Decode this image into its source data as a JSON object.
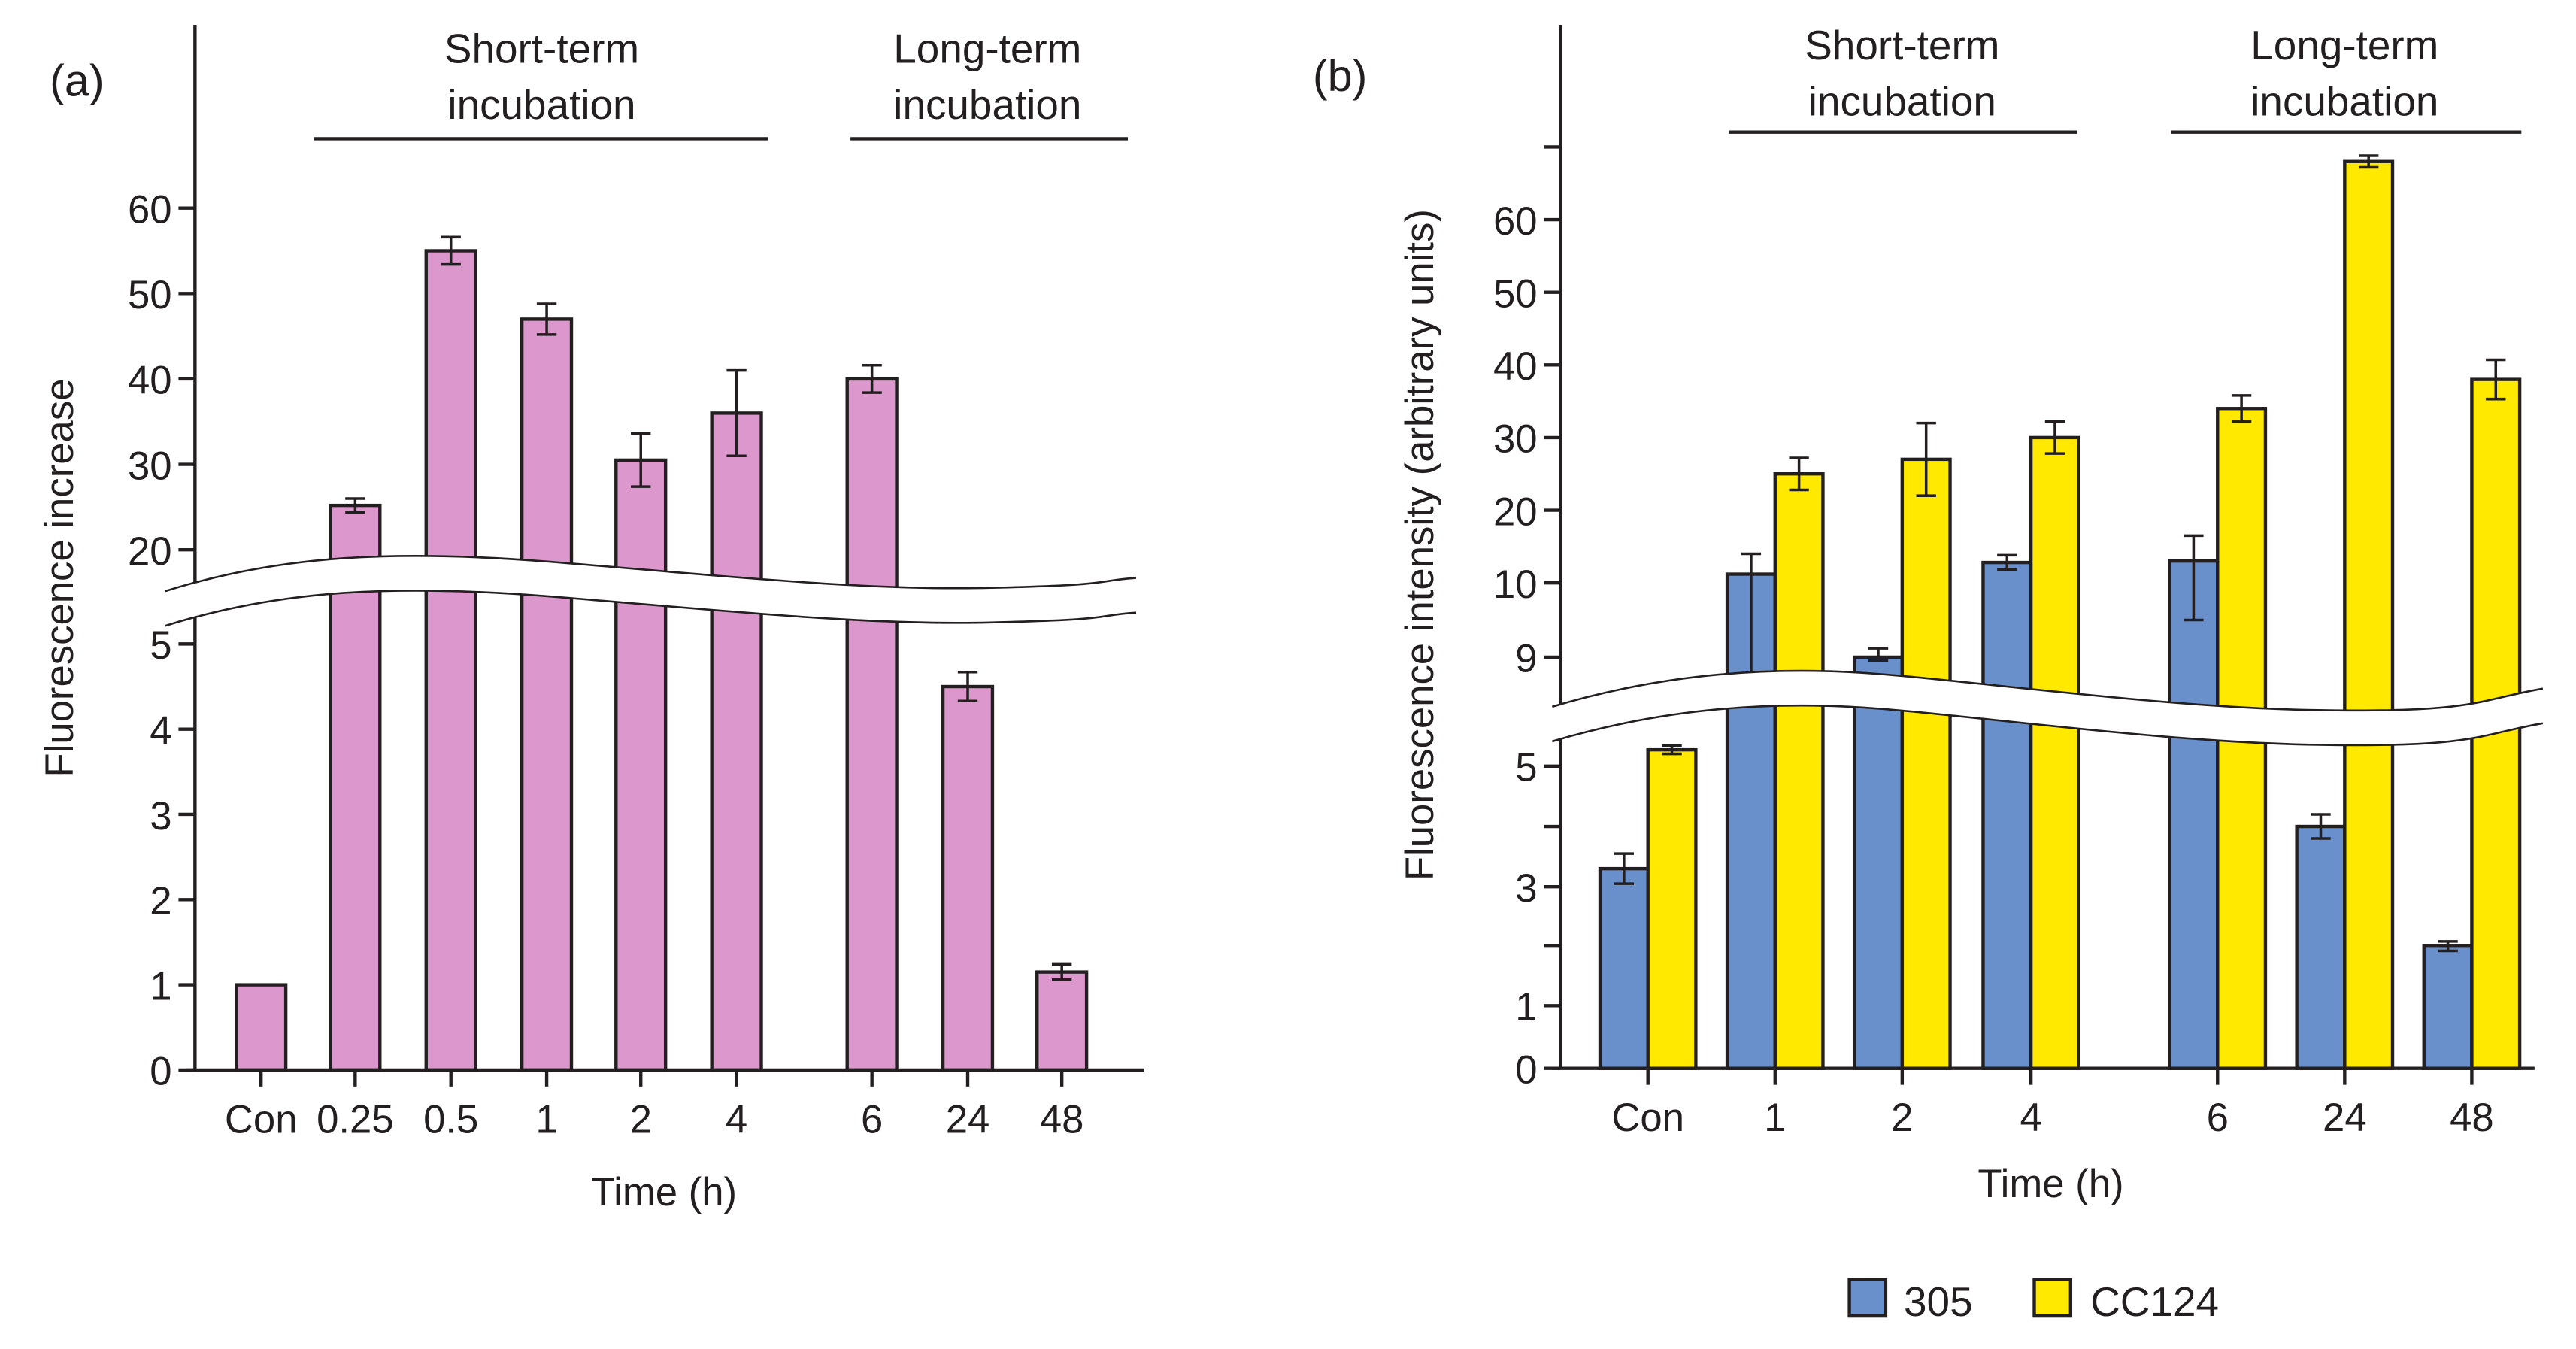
{
  "chart_data": [
    {
      "type": "bar",
      "panel_label": "(a)",
      "xlabel": "Time (h)",
      "ylabel": "Fluorescence increase",
      "y_axis_break": [
        5,
        20
      ],
      "yticks_lower": [
        "0",
        "1",
        "2",
        "3",
        "4",
        "5"
      ],
      "yticks_upper": [
        "20",
        "30",
        "40",
        "50",
        "60"
      ],
      "groups": [
        {
          "label_line1": "Short-term",
          "label_line2": "incubation",
          "from": "0.25",
          "to": "4"
        },
        {
          "label_line1": "Long-term",
          "label_line2": "incubation",
          "from": "6",
          "to": "48"
        }
      ],
      "categories": [
        "Con",
        "0.25",
        "0.5",
        "1",
        "2",
        "4",
        "6",
        "24",
        "48"
      ],
      "series": [
        {
          "name": "Fluorescence increase",
          "color": "#dc98cc",
          "values": [
            1,
            25.2,
            55,
            47,
            30.5,
            36,
            40,
            4.5,
            1.15
          ],
          "errors": [
            0,
            0.8,
            1.6,
            1.8,
            3.1,
            5,
            1.6,
            0.17,
            0.09
          ]
        }
      ]
    },
    {
      "type": "bar",
      "panel_label": "(b)",
      "xlabel": "Time (h)",
      "ylabel": "Fluorescence intensity (arbitrary units)",
      "y_axis_break": [
        5,
        9
      ],
      "yticks_lower": [
        "0",
        "1",
        "3",
        "5"
      ],
      "yticks_upper": [
        "9",
        "10",
        "20",
        "30",
        "40",
        "50",
        "60"
      ],
      "groups": [
        {
          "label_line1": "Short-term",
          "label_line2": "incubation",
          "from": "1",
          "to": "4"
        },
        {
          "label_line1": "Long-term",
          "label_line2": "incubation",
          "from": "6",
          "to": "48"
        }
      ],
      "categories": [
        "Con",
        "1",
        "2",
        "4",
        "6",
        "24",
        "48"
      ],
      "series": [
        {
          "name": "305",
          "color": "#6a90cc",
          "values": [
            3.3,
            11.2,
            9.0,
            12.8,
            13,
            4.0,
            2.0
          ],
          "errors": [
            0.25,
            2.8,
            0.12,
            1.0,
            3.5,
            0.2,
            0.08
          ]
        },
        {
          "name": "CC124",
          "color": "#ffe900",
          "values": [
            5.6,
            25,
            27,
            30,
            34,
            68,
            38
          ],
          "errors": [
            0.15,
            2.2,
            5,
            2.2,
            1.8,
            0.8,
            2.7
          ]
        }
      ],
      "legend": {
        "position": "bottom-center"
      }
    }
  ]
}
